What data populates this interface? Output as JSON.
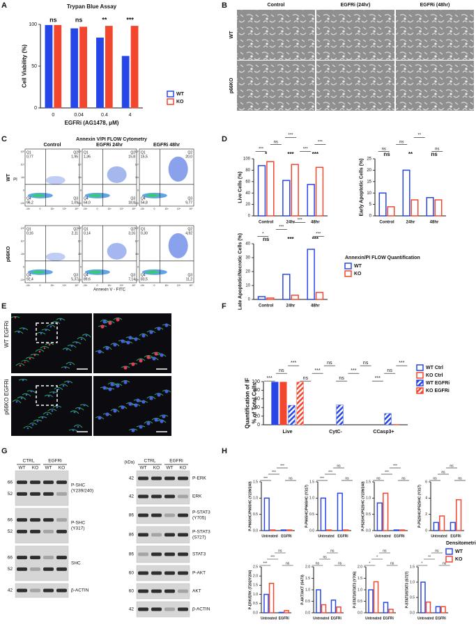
{
  "panel_labels": [
    "A",
    "B",
    "C",
    "D",
    "E",
    "F",
    "G",
    "H"
  ],
  "chart_data": [
    {
      "type": "bar",
      "title": "Trypan Blue Assay",
      "y_label": "Cell Viability (%)",
      "x_label": "EGFRi (AG1478, μM)",
      "categories": [
        "0",
        "0.04",
        "0.4",
        "4"
      ],
      "series": [
        {
          "name": "WT",
          "color": "#2746e8",
          "values": [
            99,
            95,
            84,
            62
          ]
        },
        {
          "name": "KO",
          "color": "#f2462e",
          "values": [
            99,
            97,
            98,
            98
          ]
        }
      ],
      "ylim": [
        0,
        100
      ],
      "yticks": [
        0,
        50,
        100
      ],
      "bar_style": "filled",
      "legend": true,
      "group_annotations": [
        "ns",
        "ns",
        "**",
        "***"
      ]
    },
    {
      "type": "bar",
      "y_label": "Live Cells (%)",
      "categories": [
        "Control",
        "24hr",
        "48hr"
      ],
      "series": [
        {
          "name": "WT",
          "color": "#2746e8",
          "values": [
            88,
            62,
            55
          ]
        },
        {
          "name": "KO",
          "color": "#f2462e",
          "values": [
            95,
            90,
            85
          ]
        }
      ],
      "ylim": [
        0,
        100
      ],
      "yticks": [
        0,
        20,
        40,
        60,
        80,
        100
      ],
      "bar_style": "outline",
      "legend": false,
      "group_annotations": [
        "*",
        "***",
        "***"
      ],
      "annotations": [
        "***",
        "ns",
        "***",
        "***",
        "***"
      ]
    },
    {
      "type": "bar",
      "y_label": "Early Apoptotic Cells (%)",
      "categories": [
        "Control",
        "24hr",
        "48hr"
      ],
      "series": [
        {
          "name": "WT",
          "color": "#2746e8",
          "values": [
            10,
            20,
            8
          ]
        },
        {
          "name": "KO",
          "color": "#f2462e",
          "values": [
            4,
            7,
            7
          ]
        }
      ],
      "ylim": [
        0,
        25
      ],
      "yticks": [
        0,
        5,
        10,
        15,
        20,
        25
      ],
      "bar_style": "outline",
      "legend": false,
      "group_annotations": [
        "ns",
        "**",
        "ns"
      ],
      "annotations": [
        "ns",
        "ns",
        "**",
        "ns"
      ]
    },
    {
      "type": "bar",
      "y_label": "Late Apoptotic/Necrotic Cells (%)",
      "categories": [
        "Control",
        "24hr",
        "48hr"
      ],
      "series": [
        {
          "name": "WT",
          "color": "#2746e8",
          "values": [
            2,
            18,
            36
          ]
        },
        {
          "name": "KO",
          "color": "#f2462e",
          "values": [
            1,
            3,
            5
          ]
        }
      ],
      "ylim": [
        0,
        40
      ],
      "yticks": [
        0,
        10,
        20,
        30,
        40
      ],
      "bar_style": "outline",
      "legend": true,
      "legend_title": "Annexin/PI FLOW Quantification",
      "group_annotations": [
        "ns",
        "***",
        "***"
      ],
      "annotations": [
        "*",
        "***",
        "***",
        "***"
      ]
    },
    {
      "type": "bar",
      "y_label": "Quantification of IF",
      "y_label2": "% of Total Cells",
      "categories": [
        "Live",
        "CytC-",
        "CCasp3+"
      ],
      "series": [
        {
          "name": "WT Ctrl",
          "color": "#2746e8",
          "values": [
            99,
            0,
            0
          ],
          "hatch": false
        },
        {
          "name": "KO Ctrl",
          "color": "#f2462e",
          "values": [
            99,
            0,
            0
          ],
          "hatch": false
        },
        {
          "name": "WT EGFRi",
          "color": "#2746e8",
          "values": [
            45,
            46,
            26
          ],
          "hatch": true
        },
        {
          "name": "KO EGFRi",
          "color": "#f2462e",
          "values": [
            99,
            0,
            1
          ],
          "hatch": true
        }
      ],
      "ylim": [
        0,
        100
      ],
      "yticks": [
        0,
        20,
        40,
        60,
        80,
        100
      ],
      "bar_style": "filled",
      "legend": true,
      "annotations": [
        "***",
        "ns",
        "***",
        "ns",
        "***",
        "ns",
        "ns",
        "***",
        "ns",
        "***",
        "ns",
        "***"
      ]
    },
    {
      "type": "bar",
      "y_label": "P-P66SHC/P66SHC (Y239/240)",
      "categories": [
        "Untreated",
        "EGFRi"
      ],
      "series": [
        {
          "name": "WT",
          "color": "#2746e8",
          "values": [
            1.0,
            0.02
          ]
        },
        {
          "name": "KO",
          "color": "#f2462e",
          "values": [
            0.02,
            0.02
          ]
        }
      ],
      "ylim": [
        0,
        1.5
      ],
      "yticks": [
        {
          "value": 0,
          "label": "0.0"
        },
        {
          "value": 0.5,
          "label": "0.5"
        },
        {
          "value": 1,
          "label": "1.0"
        },
        {
          "value": 1.5,
          "label": "1.5"
        }
      ],
      "bar_style": "outline",
      "legend": false,
      "annotations": [
        "***",
        "***",
        "***",
        "ns"
      ]
    },
    {
      "type": "bar",
      "y_label": "P-P66SHC/P66SHC (Y317)",
      "categories": [
        "Untreated",
        "EGFRi"
      ],
      "series": [
        {
          "name": "WT",
          "color": "#2746e8",
          "values": [
            1.0,
            1.15
          ]
        },
        {
          "name": "KO",
          "color": "#f2462e",
          "values": [
            0.02,
            0.02
          ]
        }
      ],
      "ylim": [
        0,
        1.5
      ],
      "yticks": [
        {
          "value": 0,
          "label": "0.0"
        },
        {
          "value": 0.5,
          "label": "0.5"
        },
        {
          "value": 1,
          "label": "1.0"
        },
        {
          "value": 1.5,
          "label": "1.5"
        }
      ],
      "bar_style": "outline",
      "legend": false,
      "annotations": [
        "***",
        "***",
        "ns",
        "ns"
      ]
    },
    {
      "type": "bar",
      "y_label": "P-P52SHC/P52SHC (Y239/240)",
      "categories": [
        "Untreated",
        "EGFRi"
      ],
      "series": [
        {
          "name": "WT",
          "color": "#2746e8",
          "values": [
            0.85,
            0.02
          ]
        },
        {
          "name": "KO",
          "color": "#f2462e",
          "values": [
            1.15,
            0.02
          ]
        }
      ],
      "ylim": [
        0,
        1.5
      ],
      "yticks": [
        {
          "value": 0,
          "label": "0.0"
        },
        {
          "value": 0.5,
          "label": "0.5"
        },
        {
          "value": 1,
          "label": "1.0"
        },
        {
          "value": 1.5,
          "label": "1.5"
        }
      ],
      "bar_style": "outline",
      "legend": false,
      "annotations": [
        "ns",
        "***",
        "***",
        "ns"
      ]
    },
    {
      "type": "bar",
      "y_label": "P-P52SHC/P52SHC (Y317)",
      "categories": [
        "Untreated",
        "EGFRi"
      ],
      "series": [
        {
          "name": "WT",
          "color": "#2746e8",
          "values": [
            1.0,
            1.0
          ]
        },
        {
          "name": "KO",
          "color": "#f2462e",
          "values": [
            1.8,
            3.8
          ]
        }
      ],
      "ylim": [
        0,
        6
      ],
      "yticks": [
        0,
        2,
        4,
        6
      ],
      "bar_style": "outline",
      "legend": false,
      "annotations": [
        "ns",
        "ns",
        "ns",
        "ns"
      ]
    },
    {
      "type": "bar",
      "y_label": "P-ERK/ERK (T202/Y204)",
      "categories": [
        "Untreated",
        "EGFRi"
      ],
      "series": [
        {
          "name": "WT",
          "color": "#2746e8",
          "values": [
            1.0,
            0.02
          ]
        },
        {
          "name": "KO",
          "color": "#f2462e",
          "values": [
            1.6,
            0.12
          ]
        }
      ],
      "ylim": [
        0,
        2.5
      ],
      "yticks": [
        {
          "value": 0,
          "label": "0.0"
        },
        {
          "value": 0.5,
          "label": "0.5"
        },
        {
          "value": 1,
          "label": "1.0"
        },
        {
          "value": 1.5,
          "label": "1.5"
        },
        {
          "value": 2,
          "label": "2.0"
        },
        {
          "value": 2.5,
          "label": "2.5"
        }
      ],
      "bar_style": "outline",
      "legend": false,
      "annotations": [
        "***",
        "***",
        "ns",
        "ns"
      ]
    },
    {
      "type": "bar",
      "y_label": "P-AKT/AKT (S473)",
      "categories": [
        "Untreated",
        "EGFRi"
      ],
      "series": [
        {
          "name": "WT",
          "color": "#2746e8",
          "values": [
            1.0,
            0.55
          ]
        },
        {
          "name": "KO",
          "color": "#f2462e",
          "values": [
            0.35,
            0.25
          ]
        }
      ],
      "ylim": [
        0,
        2
      ],
      "yticks": [
        {
          "value": 0,
          "label": "0.0"
        },
        {
          "value": 0.5,
          "label": "0.5"
        },
        {
          "value": 1,
          "label": "1.0"
        },
        {
          "value": 1.5,
          "label": "1.5"
        },
        {
          "value": 2,
          "label": "2.0"
        }
      ],
      "bar_style": "outline",
      "legend": false,
      "annotations": [
        "ns",
        "ns",
        "ns",
        "ns"
      ]
    },
    {
      "type": "bar",
      "y_label": "P-STAT3/STAT3 (Y705)",
      "categories": [
        "Untreated",
        "EGFRi"
      ],
      "series": [
        {
          "name": "WT",
          "color": "#2746e8",
          "values": [
            1.0,
            0.45
          ]
        },
        {
          "name": "KO",
          "color": "#f2462e",
          "values": [
            1.35,
            0.15
          ]
        }
      ],
      "ylim": [
        0,
        2
      ],
      "yticks": [
        {
          "value": 0,
          "label": "0.0"
        },
        {
          "value": 0.5,
          "label": "0.5"
        },
        {
          "value": 1,
          "label": "1.0"
        },
        {
          "value": 1.5,
          "label": "1.5"
        },
        {
          "value": 2,
          "label": "2.0"
        }
      ],
      "bar_style": "outline",
      "legend": false,
      "annotations": [
        "*",
        "*",
        "ns",
        "ns"
      ]
    },
    {
      "type": "bar",
      "y_label": "P-STAT3/STAT3 (S727)",
      "categories": [
        "Untreated",
        "EGFRi"
      ],
      "series": [
        {
          "name": "WT",
          "color": "#2746e8",
          "values": [
            1.0,
            0.2
          ]
        },
        {
          "name": "KO",
          "color": "#f2462e",
          "values": [
            0.35,
            0.2
          ]
        }
      ],
      "ylim": [
        0,
        1.5
      ],
      "yticks": [
        {
          "value": 0,
          "label": "0.0"
        },
        {
          "value": 0.5,
          "label": "0.5"
        },
        {
          "value": 1,
          "label": "1.0"
        },
        {
          "value": 1.5,
          "label": "1.5"
        }
      ],
      "bar_style": "outline",
      "legend": true,
      "legend_title": "Densitometric Analysis",
      "annotations": [
        "*",
        "**",
        "ns",
        "ns"
      ]
    }
  ],
  "micrographs": {
    "columns": [
      "Control",
      "EGFRi (24hr)",
      "EGFRi (48hr)"
    ],
    "rows": [
      "WT",
      "p66KO"
    ]
  },
  "flow": {
    "title": "Annexin V/PI FLOW Cytometry",
    "columns": [
      "Control",
      "EGFRi 24hr",
      "EGFRi 48hr"
    ],
    "rows": [
      "WT",
      "p66KO"
    ],
    "x_label": "Annexin V - FITC",
    "y_label": "PI",
    "axis_tick_labels": [
      "-10³",
      "0",
      "10³",
      "10⁴",
      "10⁵"
    ],
    "quadrant_names": [
      "Q1",
      "Q2",
      "Q4",
      "Q3"
    ],
    "plots": [
      [
        "0,77",
        "1,95",
        "96,2",
        "1,09"
      ],
      [
        "1,36",
        "15,8",
        "64,0",
        "18,8"
      ],
      [
        "15,5",
        "20,0",
        "54,8",
        "9,77"
      ],
      [
        "0,16",
        "2,11",
        "92,4",
        "5,37"
      ],
      [
        "0,14",
        "3,16",
        "89,6",
        "7,14"
      ],
      [
        "0,30",
        "4,92",
        "83,5",
        "11,2"
      ]
    ]
  },
  "immunofluorescence": {
    "rows": [
      "WT EGFRi",
      "p66KO EGFRi"
    ],
    "stains": [
      "CCasp3",
      "CytC"
    ]
  },
  "blots": {
    "left": {
      "conditions": [
        "CTRL",
        "EGFRi"
      ],
      "lanes": [
        "WT",
        "KO",
        "WT",
        "KO"
      ],
      "strips": [
        {
          "kda": [
            "66",
            "52"
          ],
          "label": [
            "P-SHC",
            "(Y239/240)"
          ]
        },
        {
          "kda": [
            "66",
            "52"
          ],
          "label": [
            "P-SHC",
            "(Y317)"
          ]
        },
        {
          "kda": [
            "66",
            "52"
          ],
          "label": [
            "SHC"
          ]
        },
        {
          "kda": [
            "42"
          ],
          "label": [
            "β-ACTIN"
          ]
        }
      ]
    },
    "right": {
      "unit": "(kDa)",
      "conditions": [
        "CTRL",
        "EGFRi"
      ],
      "lanes": [
        "WT",
        "KO",
        "WT",
        "KO"
      ],
      "strips": [
        {
          "kda": [
            "42"
          ],
          "label": [
            "P-ERK"
          ]
        },
        {
          "kda": [
            "42"
          ],
          "label": [
            "ERK"
          ]
        },
        {
          "kda": [
            "86"
          ],
          "label": [
            "P-STAT3",
            "(Y705)"
          ]
        },
        {
          "kda": [
            "86"
          ],
          "label": [
            "P-STAT3",
            "(S727)"
          ]
        },
        {
          "kda": [
            "86"
          ],
          "label": [
            "STAT3"
          ]
        },
        {
          "kda": [
            "60"
          ],
          "label": [
            "P-AKT"
          ]
        },
        {
          "kda": [
            "60"
          ],
          "label": [
            "AKT"
          ]
        },
        {
          "kda": [
            "42"
          ],
          "label": [
            "β-ACTIN"
          ]
        }
      ]
    }
  }
}
